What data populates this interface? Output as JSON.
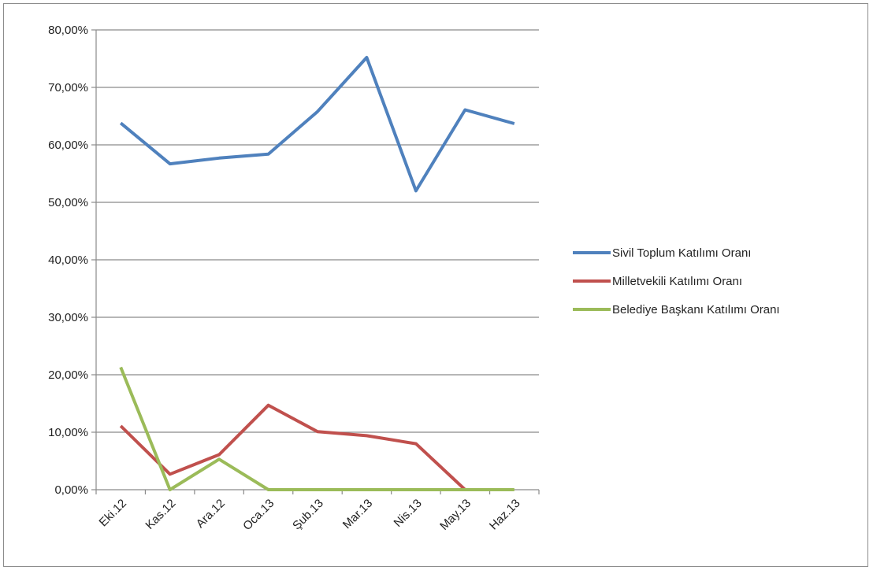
{
  "chart_data": {
    "type": "line",
    "title": "",
    "xlabel": "",
    "ylabel": "",
    "categories": [
      "Eki.12",
      "Kas.12",
      "Ara.12",
      "Oca.13",
      "Şub.13",
      "Mar.13",
      "Nis.13",
      "May.13",
      "Haz.13"
    ],
    "y_ticks": [
      "0,00%",
      "10,00%",
      "20,00%",
      "30,00%",
      "40,00%",
      "50,00%",
      "60,00%",
      "70,00%",
      "80,00%"
    ],
    "ylim": [
      0,
      80
    ],
    "y_unit": "percent",
    "grid": true,
    "legend_position": "right",
    "series": [
      {
        "name": "Sivil Toplum Katılımı Oranı",
        "color": "#4f81bd",
        "values": [
          63.8,
          56.7,
          57.7,
          58.4,
          65.8,
          75.2,
          52.0,
          66.1,
          63.7
        ]
      },
      {
        "name": "Milletvekili Katılımı Oranı",
        "color": "#c0504d",
        "values": [
          11.1,
          2.7,
          6.1,
          14.7,
          10.1,
          9.4,
          8.0,
          0.0,
          null
        ]
      },
      {
        "name": "Belediye Başkanı Katılımı Oranı",
        "color": "#9bbb59",
        "values": [
          21.3,
          0.0,
          5.3,
          0.0,
          0.0,
          0.0,
          0.0,
          0.0,
          0.0
        ]
      }
    ]
  }
}
